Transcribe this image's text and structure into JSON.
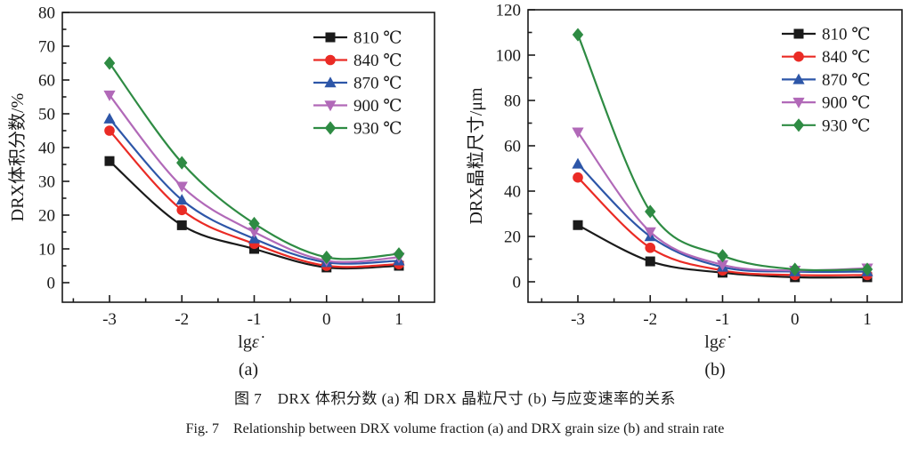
{
  "figure": {
    "caption_zh": "图 7　DRX 体积分数 (a) 和 DRX 晶粒尺寸 (b) 与应变速率的关系",
    "caption_en": "Fig. 7　Relationship between DRX volume fraction (a) and DRX grain size (b) and strain rate"
  },
  "chart_data": [
    {
      "type": "line",
      "panel_label": "(a)",
      "xlabel": "lgε̇",
      "ylabel": "DRX体积分数/%",
      "xlim": [
        -3.65,
        1.5
      ],
      "ylim": [
        0,
        80
      ],
      "ytick_step": 10,
      "yminor_step": 5,
      "xticks": [
        -3,
        -2,
        -1,
        0,
        1
      ],
      "xminor_ticks": [
        -3.5,
        -2.5,
        -1.5,
        -0.5,
        0.5
      ],
      "x": [
        -3,
        -2,
        -1,
        0,
        1
      ],
      "grid": false,
      "legend_position": "top-right",
      "axis_color": "#1a1a1a",
      "series": [
        {
          "name": "810 ℃",
          "marker": "square",
          "color": "#1a1a1a",
          "values": [
            36,
            17,
            10,
            4.5,
            5
          ]
        },
        {
          "name": "840 ℃",
          "marker": "circle",
          "color": "#ea2b25",
          "values": [
            45,
            21.5,
            11.5,
            5,
            5.5
          ]
        },
        {
          "name": "870 ℃",
          "marker": "triangle-up",
          "color": "#2d56a8",
          "values": [
            48.5,
            24.5,
            13,
            6,
            6.5
          ]
        },
        {
          "name": "900 ℃",
          "marker": "triangle-down",
          "color": "#b169b8",
          "values": [
            55.5,
            28.5,
            15,
            6.5,
            7.5
          ]
        },
        {
          "name": "930 ℃",
          "marker": "diamond",
          "color": "#2e8b43",
          "values": [
            65,
            35.5,
            17.5,
            7.5,
            8.5
          ]
        }
      ]
    },
    {
      "type": "line",
      "panel_label": "(b)",
      "xlabel": "lgε̇",
      "ylabel": "DRX晶粒尺寸/μm",
      "xlim": [
        -3.7,
        1.5
      ],
      "ylim": [
        0,
        120
      ],
      "ytick_step": 20,
      "yminor_step": 10,
      "xticks": [
        -3,
        -2,
        -1,
        0,
        1
      ],
      "xminor_ticks": [
        -3.5,
        -2.5,
        -1.5,
        -0.5,
        0.5
      ],
      "x": [
        -3,
        -2,
        -1,
        0,
        1
      ],
      "grid": false,
      "legend_position": "top-right",
      "axis_color": "#1a1a1a",
      "series": [
        {
          "name": "810 ℃",
          "marker": "square",
          "color": "#1a1a1a",
          "values": [
            25,
            9,
            4,
            2,
            2
          ]
        },
        {
          "name": "840 ℃",
          "marker": "circle",
          "color": "#ea2b25",
          "values": [
            46,
            15,
            5,
            3,
            3
          ]
        },
        {
          "name": "870 ℃",
          "marker": "triangle-up",
          "color": "#2d56a8",
          "values": [
            52,
            20,
            6.5,
            4.5,
            4.5
          ]
        },
        {
          "name": "900 ℃",
          "marker": "triangle-down",
          "color": "#b169b8",
          "values": [
            66,
            22,
            7.5,
            5,
            6
          ]
        },
        {
          "name": "930 ℃",
          "marker": "diamond",
          "color": "#2e8b43",
          "values": [
            109,
            31,
            11.5,
            5.5,
            5.5
          ]
        }
      ]
    }
  ]
}
